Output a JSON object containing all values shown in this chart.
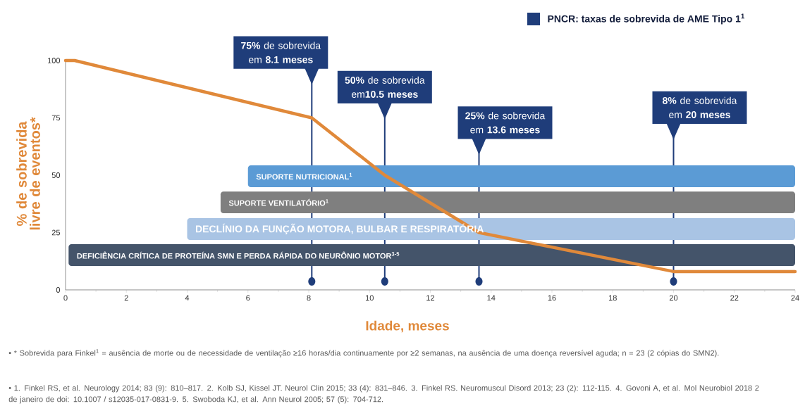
{
  "chart_data": {
    "type": "line",
    "ylabel": "% de sobrevida livre de eventos*",
    "xlabel": "Idade, meses",
    "x": [
      0,
      0.3,
      8.1,
      10.5,
      13.6,
      20,
      24
    ],
    "series": [
      {
        "color": "#e0893a",
        "values": [
          100,
          100,
          75,
          50,
          25,
          8,
          8
        ]
      }
    ],
    "xlim": [
      0,
      24
    ],
    "ylim": [
      0,
      100
    ],
    "xticks": [
      0,
      2,
      4,
      6,
      8,
      10,
      12,
      14,
      16,
      18,
      20,
      22,
      24
    ],
    "yticks": [
      0,
      25,
      50,
      75,
      100
    ],
    "ref_lines": [
      {
        "axis": "x",
        "value": 8.1,
        "label": "**75%** de sobrevida em **8.1 meses**",
        "color": "#1f3d7a"
      },
      {
        "axis": "x",
        "value": 10.5,
        "label": "**50%** de sobrevida em**10.5 meses**",
        "color": "#1f3d7a"
      },
      {
        "axis": "x",
        "value": 13.6,
        "label": "**25%** de sobrevida em **13.6 meses**",
        "color": "#1f3d7a"
      },
      {
        "axis": "x",
        "value": 20,
        "label": "**8%** de sobrevida em **20 meses**",
        "color": "#1f3d7a"
      }
    ],
    "bands": [
      {
        "axis": "x",
        "from": 6,
        "to": 24,
        "label": "SUPORTE NUTRICIONAL$^{1}$",
        "color": "#5b9bd5"
      },
      {
        "axis": "x",
        "from": 5.1,
        "to": 24,
        "label": "SUPORTE VENTILATÓRIO$^{1}$",
        "color": "#7f7f7f"
      },
      {
        "axis": "x",
        "from": 4,
        "to": 24,
        "label": "DECLÍNIO DA FUNÇÃO MOTORA, BULBAR E RESPIRATÓRIA",
        "color": "#a9c4e4"
      },
      {
        "axis": "x",
        "from": 0.1,
        "to": 24,
        "label": "DEFICIÊNCIA CRÍTICA DE PROTEÍNA SMN E PERDA RÁPIDA DO NEURÔNIO MOTOR$^{3-5}$",
        "color": "#44546a"
      }
    ],
    "annotations": [
      "PNCR: taxas de sobrevida de AME Tipo 1$^{1}$",
      "•   * Sobrevida para Finkel$^{1}$ = ausência de morte ou de necessidade de ventilação ≥16 horas/dia continuamente por ≥2 semanas, na ausência de uma doença reversível aguda; n = 23 (2 cópias do SMN2).",
      "•   1. Finkel RS, et al. Neurology 2014; 83 (9): 810–817. 2. Kolb SJ, Kissel JT. Neurol Clin 2015; 33 (4): 831–846. 3. Finkel RS. Neuromuscul Disord 2013; 23 (2): 112-115. 4. Govoni A, et al. Mol Neurobiol 2018 2 de janeiro de doi: 10.1007 / s12035-017-0831-9. 5. Swoboda KJ, et al. Ann Neurol 2005; 57 (5): 704-712."
    ]
  }
}
